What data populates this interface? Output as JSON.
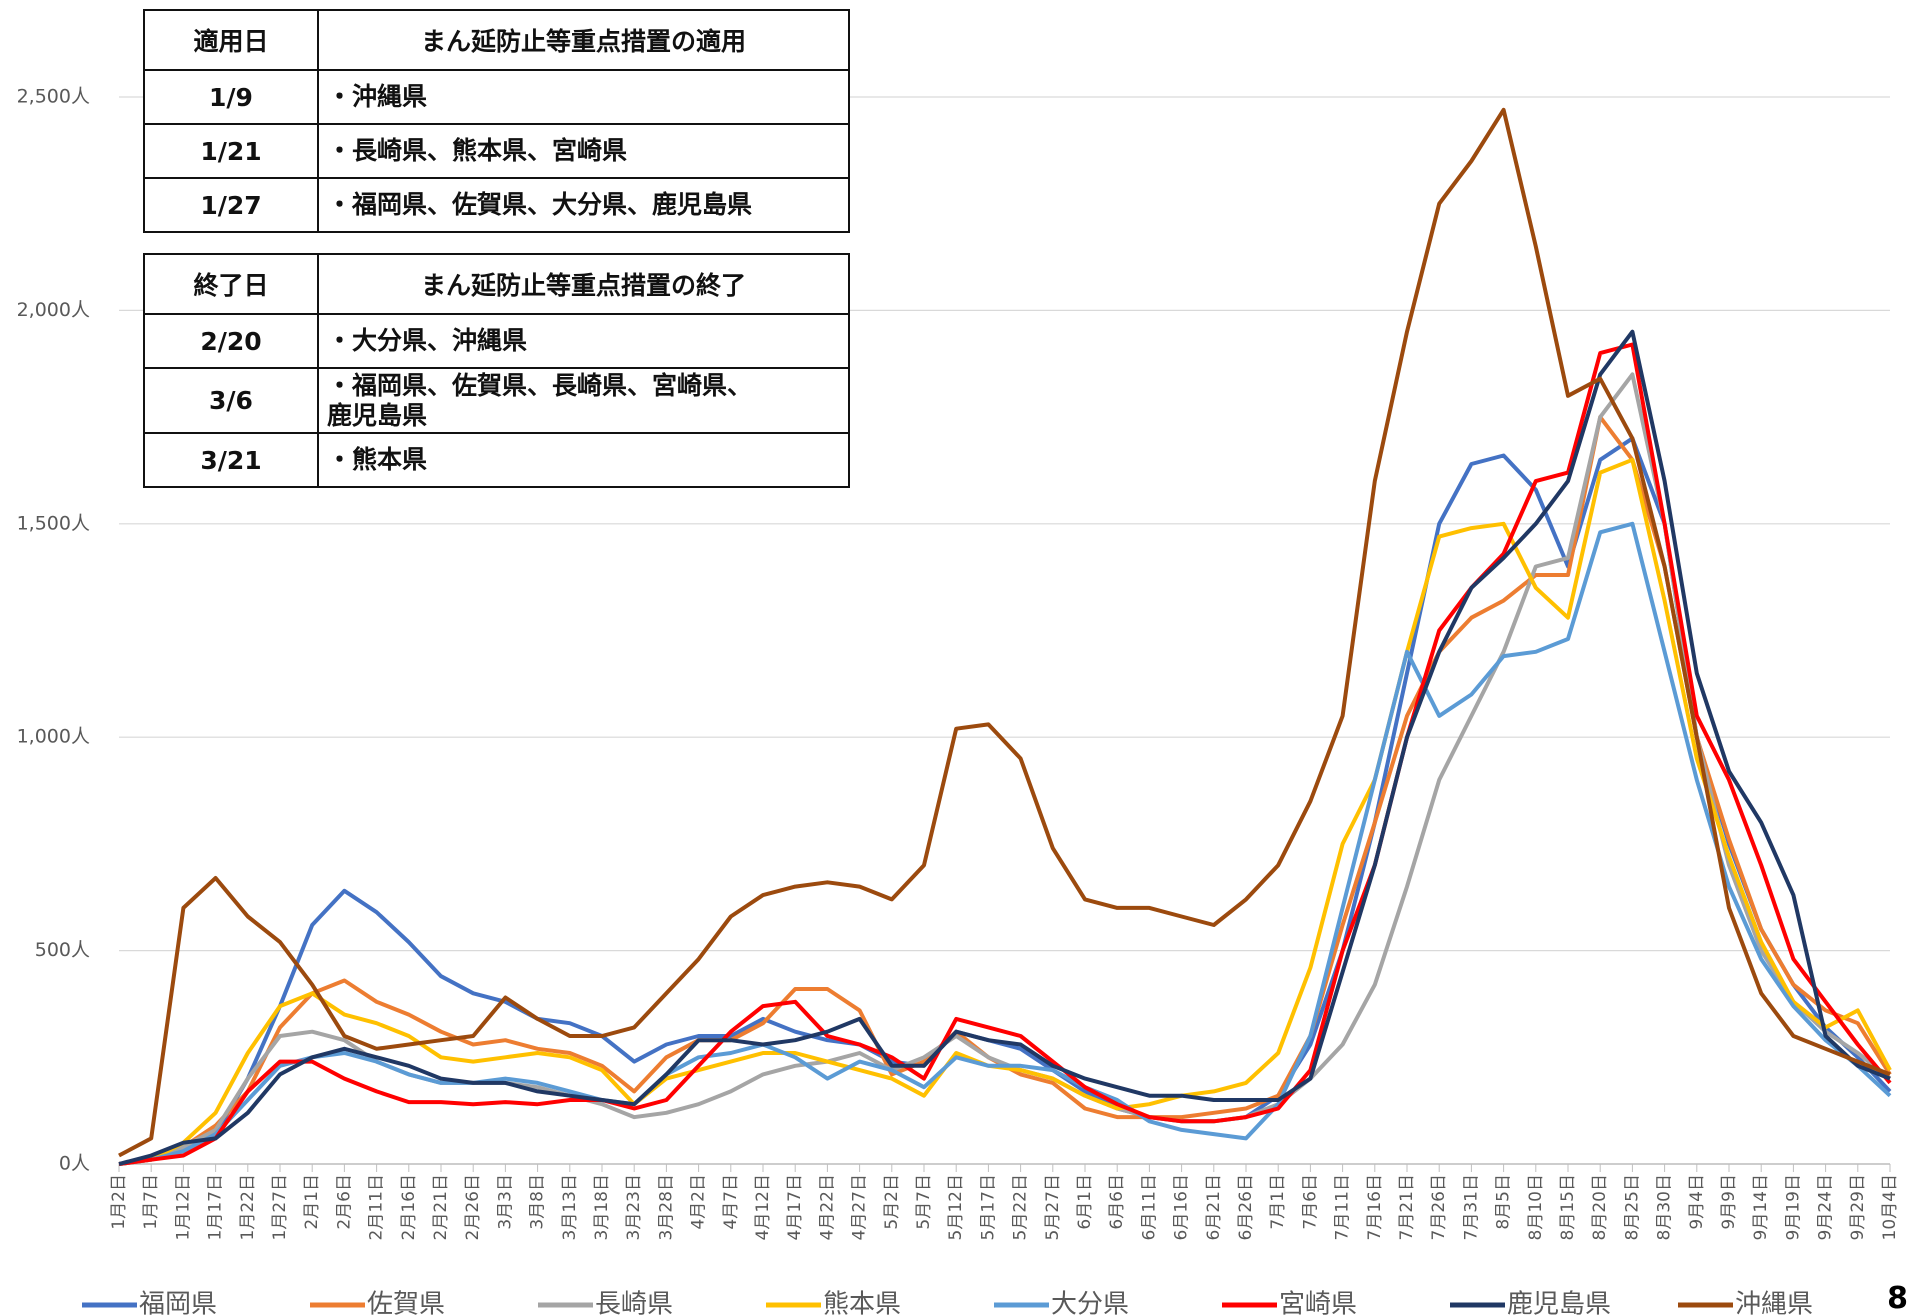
{
  "tables": [
    {
      "header": [
        "適用日",
        "まん延防止等重点措置の適用"
      ],
      "rows": [
        [
          "1/9",
          "・沖縄県"
        ],
        [
          "1/21",
          "・長崎県、熊本県、宮崎県"
        ],
        [
          "1/27",
          "・福岡県、佐賀県、大分県、鹿児島県"
        ]
      ]
    },
    {
      "header": [
        "終了日",
        "まん延防止等重点措置の終了"
      ],
      "rows": [
        [
          "2/20",
          "・大分県、沖縄県"
        ],
        [
          "3/6",
          "・福岡県、佐賀県、長崎県、宮崎県、\n  鹿児島県"
        ],
        [
          "3/21",
          "・熊本県"
        ]
      ]
    }
  ],
  "page_number": "8",
  "chart_data": {
    "type": "line",
    "categories": [
      "1月2日",
      "1月7日",
      "1月12日",
      "1月17日",
      "1月22日",
      "1月27日",
      "2月1日",
      "2月6日",
      "2月11日",
      "2月16日",
      "2月21日",
      "2月26日",
      "3月3日",
      "3月8日",
      "3月13日",
      "3月18日",
      "3月23日",
      "3月28日",
      "4月2日",
      "4月7日",
      "4月12日",
      "4月17日",
      "4月22日",
      "4月27日",
      "5月2日",
      "5月7日",
      "5月12日",
      "5月17日",
      "5月22日",
      "5月27日",
      "6月1日",
      "6月6日",
      "6月11日",
      "6月16日",
      "6月21日",
      "6月26日",
      "7月1日",
      "7月6日",
      "7月11日",
      "7月16日",
      "7月21日",
      "7月26日",
      "7月31日",
      "8月5日",
      "8月10日",
      "8月15日",
      "8月20日",
      "8月25日",
      "8月30日",
      "9月4日",
      "9月9日",
      "9月14日",
      "9月19日",
      "9月24日",
      "9月29日",
      "10月4日"
    ],
    "ylim": [
      0,
      2500
    ],
    "yticks": [
      {
        "value": 0,
        "label": "0人"
      },
      {
        "value": 500,
        "label": "500人"
      },
      {
        "value": 1000,
        "label": "1,000人"
      },
      {
        "value": 1500,
        "label": "1,500人"
      },
      {
        "value": 2000,
        "label": "2,000人"
      },
      {
        "value": 2500,
        "label": "2,500人"
      }
    ],
    "grid": true,
    "legend": "bottom",
    "series": [
      {
        "name": "福岡県",
        "color": "#4472c4",
        "values": [
          0,
          10,
          40,
          70,
          200,
          370,
          560,
          640,
          590,
          520,
          440,
          400,
          380,
          340,
          330,
          300,
          240,
          280,
          300,
          300,
          340,
          310,
          290,
          280,
          240,
          230,
          310,
          290,
          270,
          220,
          170,
          130,
          110,
          100,
          100,
          110,
          160,
          280,
          500,
          800,
          1150,
          1500,
          1640,
          1660,
          1580,
          1400,
          1650,
          1700,
          1500,
          1000,
          750,
          550,
          420,
          320,
          250,
          170
        ]
      },
      {
        "name": "佐賀県",
        "color": "#ed7d31",
        "values": [
          0,
          10,
          40,
          90,
          170,
          320,
          400,
          430,
          380,
          350,
          310,
          280,
          290,
          270,
          260,
          230,
          170,
          250,
          290,
          290,
          330,
          410,
          410,
          360,
          210,
          240,
          310,
          250,
          210,
          190,
          130,
          110,
          110,
          110,
          120,
          130,
          160,
          300,
          560,
          800,
          1050,
          1200,
          1280,
          1320,
          1380,
          1380,
          1750,
          1650,
          1400,
          1000,
          760,
          550,
          420,
          360,
          330,
          210
        ]
      },
      {
        "name": "長崎県",
        "color": "#a5a5a5",
        "values": [
          0,
          10,
          40,
          80,
          200,
          300,
          310,
          290,
          240,
          210,
          190,
          190,
          190,
          180,
          160,
          140,
          110,
          120,
          140,
          170,
          210,
          230,
          240,
          260,
          220,
          250,
          300,
          250,
          220,
          200,
          160,
          130,
          110,
          100,
          100,
          110,
          140,
          200,
          280,
          420,
          650,
          900,
          1050,
          1200,
          1400,
          1420,
          1750,
          1850,
          1500,
          1000,
          700,
          500,
          380,
          310,
          260,
          200
        ]
      },
      {
        "name": "熊本県",
        "color": "#ffc000",
        "values": [
          0,
          10,
          50,
          120,
          260,
          370,
          400,
          350,
          330,
          300,
          250,
          240,
          250,
          260,
          250,
          220,
          140,
          200,
          220,
          240,
          260,
          260,
          240,
          220,
          200,
          160,
          260,
          230,
          220,
          200,
          160,
          130,
          140,
          160,
          170,
          190,
          260,
          460,
          750,
          900,
          1200,
          1470,
          1490,
          1500,
          1350,
          1280,
          1620,
          1650,
          1320,
          950,
          720,
          520,
          380,
          320,
          360,
          220
        ]
      },
      {
        "name": "大分県",
        "color": "#5b9bd5",
        "values": [
          0,
          10,
          30,
          70,
          150,
          230,
          250,
          260,
          240,
          210,
          190,
          190,
          200,
          190,
          170,
          150,
          140,
          210,
          250,
          260,
          280,
          250,
          200,
          240,
          220,
          180,
          250,
          230,
          230,
          220,
          180,
          150,
          100,
          80,
          70,
          60,
          140,
          300,
          600,
          900,
          1200,
          1050,
          1100,
          1190,
          1200,
          1230,
          1480,
          1500,
          1200,
          900,
          650,
          480,
          370,
          290,
          230,
          160
        ]
      },
      {
        "name": "宮崎県",
        "color": "#ff0000",
        "values": [
          0,
          10,
          20,
          60,
          170,
          240,
          240,
          200,
          170,
          145,
          145,
          140,
          145,
          140,
          150,
          150,
          130,
          150,
          230,
          310,
          370,
          380,
          300,
          280,
          250,
          200,
          340,
          320,
          300,
          240,
          180,
          140,
          110,
          100,
          100,
          110,
          130,
          220,
          500,
          700,
          1000,
          1250,
          1350,
          1430,
          1600,
          1620,
          1900,
          1920,
          1500,
          1050,
          900,
          700,
          480,
          380,
          280,
          190
        ]
      },
      {
        "name": "鹿児島県",
        "color": "#203864",
        "values": [
          0,
          20,
          50,
          60,
          120,
          210,
          250,
          270,
          250,
          230,
          200,
          190,
          190,
          170,
          160,
          150,
          140,
          210,
          290,
          290,
          280,
          290,
          310,
          340,
          230,
          230,
          310,
          290,
          280,
          230,
          200,
          180,
          160,
          160,
          150,
          150,
          150,
          200,
          450,
          700,
          1000,
          1200,
          1350,
          1420,
          1500,
          1600,
          1850,
          1950,
          1600,
          1150,
          920,
          800,
          630,
          300,
          230,
          200
        ]
      },
      {
        "name": "沖縄県",
        "color": "#9c4a0e",
        "values": [
          20,
          60,
          600,
          670,
          580,
          520,
          420,
          300,
          270,
          280,
          290,
          300,
          390,
          340,
          300,
          300,
          320,
          400,
          480,
          580,
          630,
          650,
          660,
          650,
          620,
          700,
          1020,
          1030,
          950,
          740,
          620,
          600,
          600,
          580,
          560,
          620,
          700,
          850,
          1050,
          1600,
          1950,
          2250,
          2350,
          2470,
          2150,
          1800,
          1840,
          1700,
          1400,
          1000,
          600,
          400,
          300,
          270,
          240,
          210
        ]
      }
    ]
  }
}
